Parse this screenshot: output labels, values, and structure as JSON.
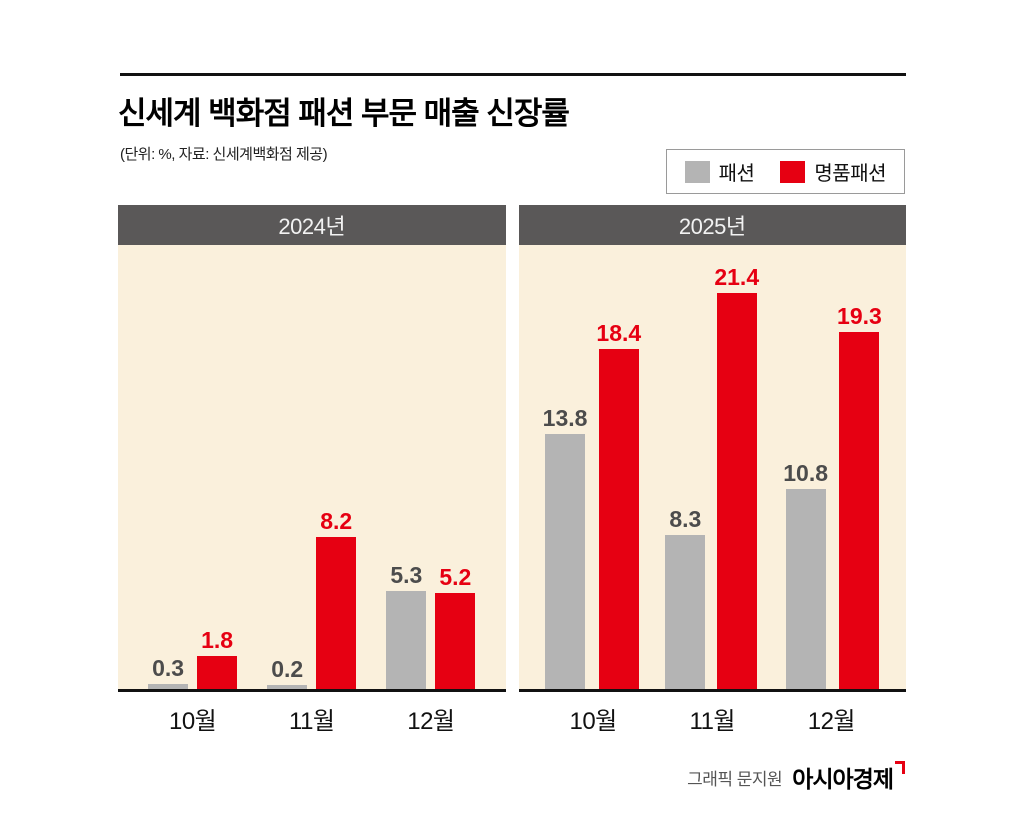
{
  "header": {
    "title": "신세계 백화점 패션 부문 매출 신장률",
    "subtitle": "(단위: %, 자료: 신세계백화점 제공)"
  },
  "legend": [
    {
      "label": "패션",
      "color": "#b4b4b4"
    },
    {
      "label": "명품패션",
      "color": "#e60012"
    }
  ],
  "chart_data": {
    "type": "bar",
    "title": "신세계 백화점 패션 부문 매출 신장률",
    "unit": "%",
    "source": "신세계백화점 제공",
    "ymax": 24,
    "grid": false,
    "legend_position": "top-right",
    "series": [
      {
        "name": "패션",
        "color": "#b4b4b4",
        "label_color": "#4c4c4c"
      },
      {
        "name": "명품패션",
        "color": "#e60012",
        "label_color": "#e60012"
      }
    ],
    "panels": [
      {
        "year": "2024년",
        "categories": [
          "10월",
          "11월",
          "12월"
        ],
        "groups": [
          {
            "category": "10월",
            "values": [
              0.3,
              1.8
            ]
          },
          {
            "category": "11월",
            "values": [
              0.2,
              8.2
            ]
          },
          {
            "category": "12월",
            "values": [
              5.3,
              5.2
            ]
          }
        ]
      },
      {
        "year": "2025년",
        "categories": [
          "10월",
          "11월",
          "12월"
        ],
        "groups": [
          {
            "category": "10월",
            "values": [
              13.8,
              18.4
            ]
          },
          {
            "category": "11월",
            "values": [
              8.3,
              21.4
            ]
          },
          {
            "category": "12월",
            "values": [
              10.8,
              19.3
            ]
          }
        ]
      }
    ]
  },
  "footer": {
    "credit": "그래픽 문지원",
    "logo": "아시아경제"
  }
}
